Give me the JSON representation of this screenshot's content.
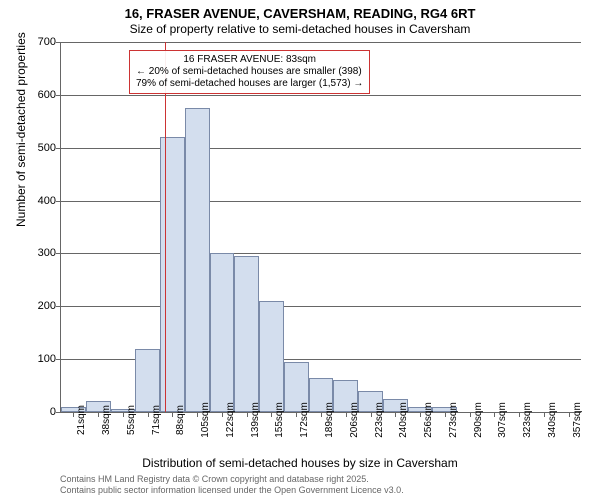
{
  "title_main": "16, FRASER AVENUE, CAVERSHAM, READING, RG4 6RT",
  "title_sub": "Size of property relative to semi-detached houses in Caversham",
  "ylabel": "Number of semi-detached properties",
  "xlabel": "Distribution of semi-detached houses by size in Caversham",
  "attribution_line1": "Contains HM Land Registry data © Crown copyright and database right 2025.",
  "attribution_line2": "Contains public sector information licensed under the Open Government Licence v3.0.",
  "chart": {
    "type": "histogram",
    "background_color": "#ffffff",
    "grid_color": "#666666",
    "bar_fill": "#d3deee",
    "bar_border": "#7a8aa8",
    "marker_color": "#cc3333",
    "ylim": [
      0,
      700
    ],
    "ytick_step": 100,
    "yticks": [
      0,
      100,
      200,
      300,
      400,
      500,
      600,
      700
    ],
    "x_categories": [
      "21sqm",
      "38sqm",
      "55sqm",
      "71sqm",
      "88sqm",
      "105sqm",
      "122sqm",
      "139sqm",
      "155sqm",
      "172sqm",
      "189sqm",
      "206sqm",
      "223sqm",
      "240sqm",
      "256sqm",
      "273sqm",
      "290sqm",
      "307sqm",
      "323sqm",
      "340sqm",
      "357sqm"
    ],
    "values": [
      10,
      20,
      5,
      120,
      520,
      575,
      300,
      295,
      210,
      95,
      65,
      60,
      40,
      25,
      10,
      10,
      0,
      0,
      0,
      0,
      0
    ],
    "title_fontsize": 13,
    "subtitle_fontsize": 12,
    "label_fontsize": 12,
    "tick_fontsize": 10,
    "marker_value_sqm": 83,
    "bar_width_ratio": 1.0
  },
  "annotation": {
    "line1": "16 FRASER AVENUE: 83sqm",
    "line2": "← 20% of semi-detached houses are smaller (398)",
    "line3": "79% of semi-detached houses are larger (1,573) →",
    "border_color": "#cc3333",
    "background_color": "#ffffff",
    "fontsize": 10
  }
}
